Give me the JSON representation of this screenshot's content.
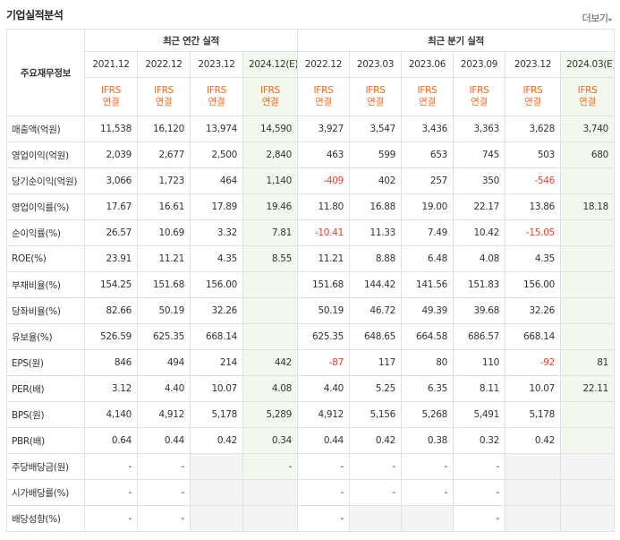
{
  "header": {
    "title": "기업실적분석",
    "more_label": "더보기"
  },
  "table": {
    "row_header": "주요재무정보",
    "group_annual": "최근 연간 실적",
    "group_quarter": "최근 분기 실적",
    "periods": [
      "2021.12",
      "2022.12",
      "2023.12",
      "2024.12(E)",
      "2022.12",
      "2023.03",
      "2023.06",
      "2023.09",
      "2023.12",
      "2024.03(E)"
    ],
    "ifrs_top": "IFRS",
    "ifrs_bottom": "연결",
    "rows": [
      {
        "label": "매출액(억원)",
        "values": [
          "11,538",
          "16,120",
          "13,974",
          "14,590",
          "3,927",
          "3,547",
          "3,436",
          "3,363",
          "3,628",
          "3,740"
        ]
      },
      {
        "label": "영업이익(억원)",
        "values": [
          "2,039",
          "2,677",
          "2,500",
          "2,840",
          "463",
          "599",
          "653",
          "745",
          "503",
          "680"
        ]
      },
      {
        "label": "당기순이익(억원)",
        "values": [
          "3,066",
          "1,723",
          "464",
          "1,140",
          "-409",
          "402",
          "257",
          "350",
          "-546",
          ""
        ]
      },
      {
        "label": "영업이익률(%)",
        "values": [
          "17.67",
          "16.61",
          "17.89",
          "19.46",
          "11.80",
          "16.88",
          "19.00",
          "22.17",
          "13.86",
          "18.18"
        ]
      },
      {
        "label": "순이익률(%)",
        "values": [
          "26.57",
          "10.69",
          "3.32",
          "7.81",
          "-10.41",
          "11.33",
          "7.49",
          "10.42",
          "-15.05",
          ""
        ]
      },
      {
        "label": "ROE(%)",
        "values": [
          "23.91",
          "11.21",
          "4.35",
          "8.55",
          "11.21",
          "8.88",
          "6.48",
          "4.08",
          "4.35",
          ""
        ]
      },
      {
        "label": "부채비율(%)",
        "values": [
          "154.25",
          "151.68",
          "156.00",
          "",
          "151.68",
          "144.42",
          "141.56",
          "151.83",
          "156.00",
          ""
        ]
      },
      {
        "label": "당좌비율(%)",
        "values": [
          "82.66",
          "50.19",
          "32.26",
          "",
          "50.19",
          "46.72",
          "49.39",
          "39.68",
          "32.26",
          ""
        ]
      },
      {
        "label": "유보율(%)",
        "values": [
          "526.59",
          "625.35",
          "668.14",
          "",
          "625.35",
          "648.65",
          "664.58",
          "686.57",
          "668.14",
          ""
        ]
      },
      {
        "label": "EPS(원)",
        "values": [
          "846",
          "494",
          "214",
          "442",
          "-87",
          "117",
          "80",
          "110",
          "-92",
          "81"
        ]
      },
      {
        "label": "PER(배)",
        "values": [
          "3.12",
          "4.40",
          "10.07",
          "4.08",
          "4.40",
          "5.25",
          "6.35",
          "8.11",
          "10.07",
          "22.11"
        ]
      },
      {
        "label": "BPS(원)",
        "values": [
          "4,140",
          "4,912",
          "5,178",
          "5,289",
          "4,912",
          "5,156",
          "5,268",
          "5,491",
          "5,178",
          ""
        ]
      },
      {
        "label": "PBR(배)",
        "values": [
          "0.64",
          "0.44",
          "0.42",
          "0.34",
          "0.44",
          "0.42",
          "0.38",
          "0.32",
          "0.42",
          ""
        ]
      },
      {
        "label": "주당배당금(원)",
        "values": [
          "-",
          "-",
          "",
          "-",
          "-",
          "-",
          "-",
          "-",
          "",
          ""
        ]
      },
      {
        "label": "시가배당률(%)",
        "values": [
          "-",
          "-",
          "",
          "",
          "-",
          "-",
          "-",
          "-",
          "",
          ""
        ]
      },
      {
        "label": "배당성향(%)",
        "values": [
          "-",
          "-",
          "",
          "",
          "-",
          "",
          "",
          "-",
          "",
          ""
        ]
      }
    ]
  },
  "colors": {
    "ifrs": "#ff6a1f",
    "negative": "#e8402c",
    "estimate_bg": "#f3f8ee",
    "blank_bg": "#f4f4f4",
    "border": "#dde2e7"
  }
}
